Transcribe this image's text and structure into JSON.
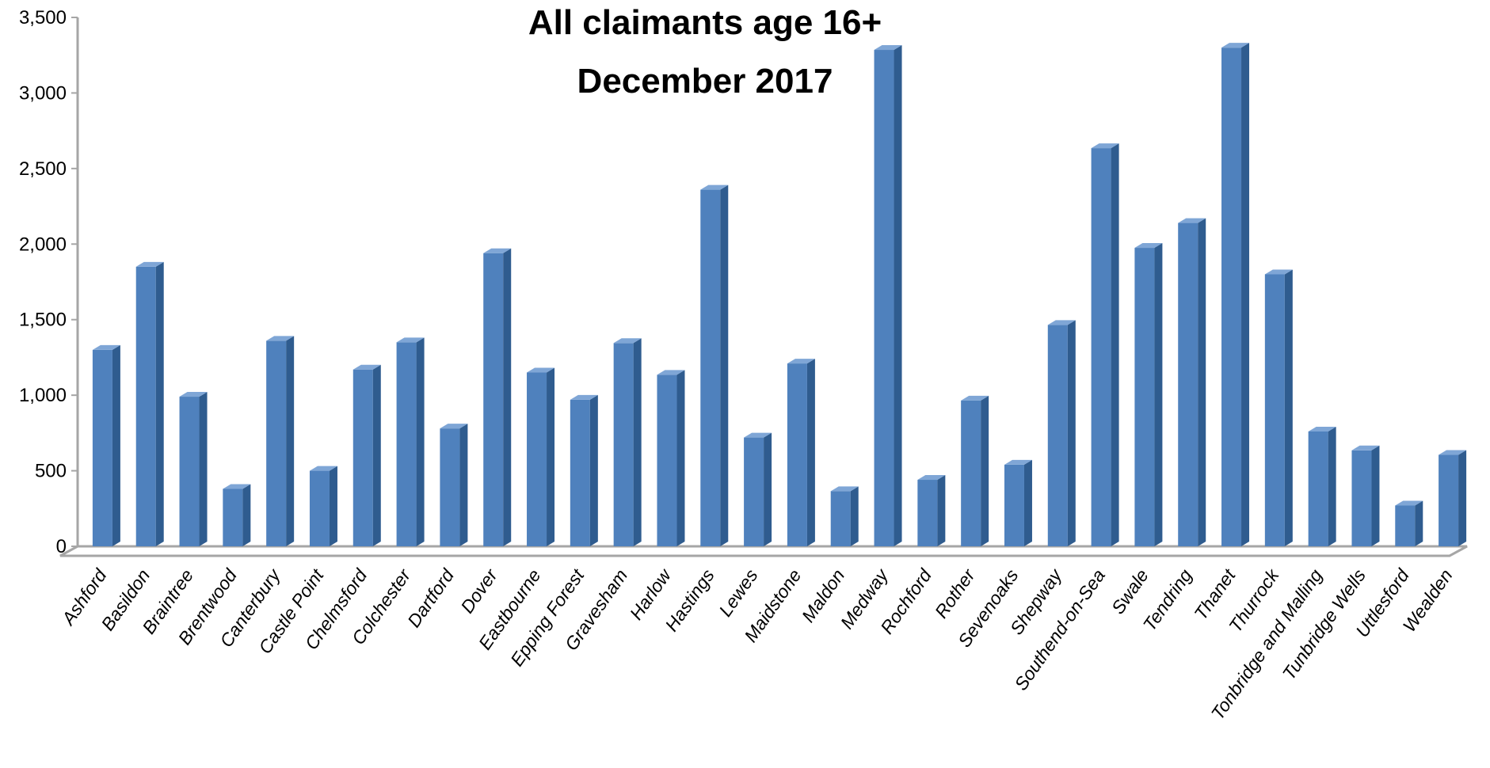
{
  "chart_data": {
    "type": "bar",
    "title": [
      "All claimants age 16+",
      "December 2017"
    ],
    "xlabel": "",
    "ylabel": "",
    "ylim": [
      0,
      3500
    ],
    "yticks": [
      "0",
      "500",
      "1,000",
      "1,500",
      "2,000",
      "2,500",
      "3,000",
      "3,500"
    ],
    "grid": false,
    "legend": "none",
    "style": "3d-column",
    "colors": {
      "bar_front": "#4f81bd",
      "bar_side": "#2f5c8f",
      "bar_top": "#7fa6d6",
      "axis": "#a6a6a6"
    },
    "categories": [
      "Ashford",
      "Basildon",
      "Braintree",
      "Brentwood",
      "Canterbury",
      "Castle Point",
      "Chelmsford",
      "Colchester",
      "Dartford",
      "Dover",
      "Eastbourne",
      "Epping Forest",
      "Gravesham",
      "Harlow",
      "Hastings",
      "Lewes",
      "Maidstone",
      "Maldon",
      "Medway",
      "Rochford",
      "Rother",
      "Sevenoaks",
      "Shepway",
      "Southend-on-Sea",
      "Swale",
      "Tendring",
      "Thanet",
      "Thurrock",
      "Tonbridge and Malling",
      "Tunbridge Wells",
      "Uttlesford",
      "Wealden"
    ],
    "values": [
      1300,
      1850,
      990,
      380,
      1360,
      500,
      1170,
      1350,
      780,
      1940,
      1150,
      970,
      1345,
      1135,
      2360,
      720,
      1210,
      365,
      3285,
      440,
      965,
      540,
      1465,
      2635,
      1975,
      2140,
      3300,
      1800,
      760,
      635,
      270,
      605
    ]
  }
}
